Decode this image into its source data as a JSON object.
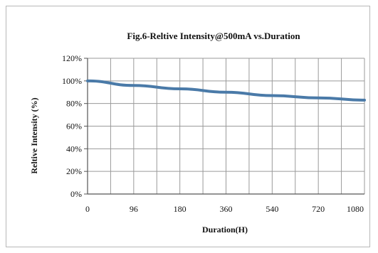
{
  "chart_data": {
    "type": "line",
    "title": "Fig.6-Reltive Intensity@500mA vs.Duration",
    "xlabel": "Duration(H)",
    "ylabel": "Reltive Intensity (%)",
    "x_tick_labels": [
      "0",
      "96",
      "180",
      "360",
      "540",
      "720",
      "1080"
    ],
    "y_tick_labels": [
      "0%",
      "20%",
      "40%",
      "60%",
      "80%",
      "100%",
      "120%"
    ],
    "y_ticks": [
      0,
      20,
      40,
      60,
      80,
      100,
      120
    ],
    "ylim": [
      0,
      120
    ],
    "grid": true,
    "x_grid_divisions": 12,
    "series": [
      {
        "color": "#4a7aa8",
        "x_index": [
          0,
          1,
          2,
          3,
          4,
          5,
          6
        ],
        "values": [
          100,
          96,
          93,
          90,
          87,
          85,
          83
        ]
      }
    ]
  },
  "colors": {
    "line": "#4a7aa8",
    "grid": "#9a9a9a",
    "axis": "#555555"
  }
}
